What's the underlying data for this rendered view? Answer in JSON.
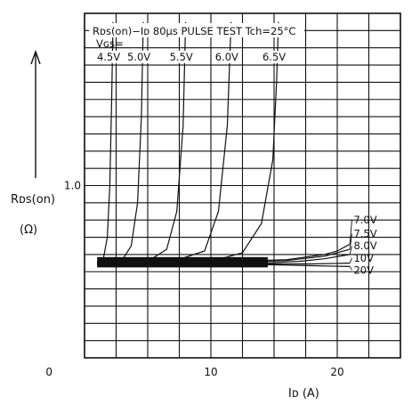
{
  "chart_data": {
    "type": "line",
    "title": "Rᴅs(on)−Iᴅ  80μs PULSE TEST  Tch=25°C",
    "xlabel": "Iᴅ (A)",
    "ylabel": "Rᴅs(on)",
    "y_unit": "(Ω)",
    "xlim": [
      0,
      25
    ],
    "ylim": [
      0,
      2.0
    ],
    "x_ticks": [
      "0",
      "10",
      "20"
    ],
    "y_ticks": [
      "1.0"
    ],
    "grid": true,
    "vgs_prefix": "Vɢs=",
    "series_labels_top": [
      "4.5V",
      "5.0V",
      "5.5V",
      "6.0V",
      "6.5V"
    ],
    "series_labels_right": [
      "7.0V",
      "7.5V",
      "8.0V",
      "10V",
      "20V"
    ],
    "series": [
      {
        "name": "4.5V",
        "x": [
          1.0,
          1.5,
          1.8,
          2.0,
          2.15,
          2.25
        ],
        "y": [
          0.55,
          0.58,
          0.7,
          1.0,
          1.5,
          1.95
        ]
      },
      {
        "name": "5.0V",
        "x": [
          1.0,
          3.0,
          3.7,
          4.2,
          4.5,
          4.65
        ],
        "y": [
          0.55,
          0.57,
          0.65,
          0.9,
          1.4,
          1.95
        ]
      },
      {
        "name": "5.5V",
        "x": [
          1.0,
          5.0,
          6.5,
          7.3,
          7.8,
          8.0
        ],
        "y": [
          0.55,
          0.56,
          0.63,
          0.85,
          1.35,
          1.95
        ]
      },
      {
        "name": "6.0V",
        "x": [
          1.0,
          7.0,
          9.5,
          10.6,
          11.3,
          11.6
        ],
        "y": [
          0.55,
          0.56,
          0.62,
          0.85,
          1.35,
          1.95
        ]
      },
      {
        "name": "6.5V",
        "x": [
          1.0,
          10.0,
          12.5,
          14.0,
          14.9,
          15.2,
          15.35
        ],
        "y": [
          0.55,
          0.56,
          0.61,
          0.78,
          1.15,
          1.6,
          1.95
        ]
      },
      {
        "name": "7.0V",
        "x": [
          1.0,
          12.0,
          16.0,
          19.0,
          20.0,
          21.0
        ],
        "y": [
          0.56,
          0.56,
          0.57,
          0.6,
          0.62,
          0.66
        ]
      },
      {
        "name": "7.5V",
        "x": [
          1.0,
          12.0,
          16.0,
          19.0,
          21.0
        ],
        "y": [
          0.555,
          0.555,
          0.565,
          0.59,
          0.63
        ]
      },
      {
        "name": "8.0V",
        "x": [
          1.0,
          14.0,
          17.0,
          19.0,
          21.0
        ],
        "y": [
          0.55,
          0.55,
          0.56,
          0.575,
          0.6
        ]
      },
      {
        "name": "10V",
        "x": [
          1.0,
          15.0,
          18.0,
          21.0
        ],
        "y": [
          0.545,
          0.545,
          0.545,
          0.55
        ]
      },
      {
        "name": "20V",
        "x": [
          1.0,
          15.0,
          18.0,
          21.0
        ],
        "y": [
          0.54,
          0.54,
          0.535,
          0.53
        ]
      }
    ]
  }
}
